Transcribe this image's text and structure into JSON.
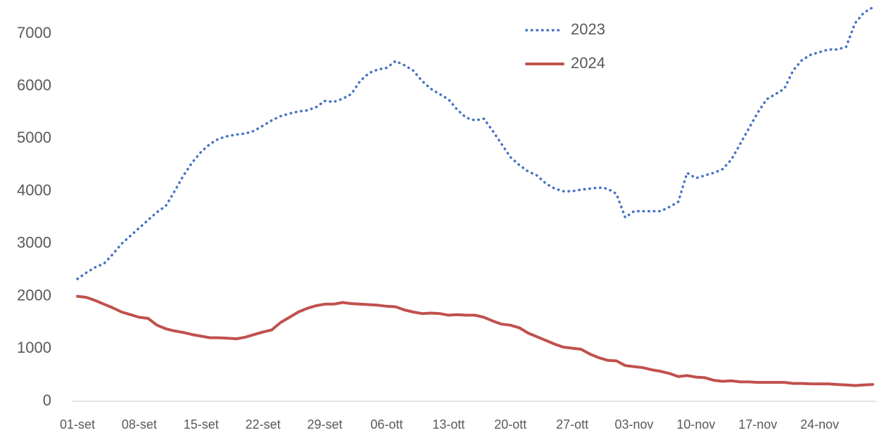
{
  "chart_data": {
    "type": "line",
    "categories": [
      "01-set",
      null,
      null,
      null,
      null,
      null,
      null,
      "08-set",
      null,
      null,
      null,
      null,
      null,
      null,
      "15-set",
      null,
      null,
      null,
      null,
      null,
      null,
      "22-set",
      null,
      null,
      null,
      null,
      null,
      null,
      "29-set",
      null,
      null,
      null,
      null,
      null,
      null,
      "06-ott",
      null,
      null,
      null,
      null,
      null,
      null,
      "13-ott",
      null,
      null,
      null,
      null,
      null,
      null,
      "20-ott",
      null,
      null,
      null,
      null,
      null,
      null,
      "27-ott",
      null,
      null,
      null,
      null,
      null,
      null,
      "03-nov",
      null,
      null,
      null,
      null,
      null,
      null,
      "10-nov",
      null,
      null,
      null,
      null,
      null,
      null,
      "17-nov",
      null,
      null,
      null,
      null,
      null,
      null,
      "24-nov",
      null,
      null,
      null,
      null,
      null,
      null
    ],
    "series": [
      {
        "name": "2023",
        "color": "#4472c4",
        "style": "dotted",
        "values": [
          2330,
          2450,
          2550,
          2620,
          2800,
          3000,
          3150,
          3300,
          3450,
          3600,
          3720,
          4000,
          4300,
          4550,
          4750,
          4900,
          5000,
          5050,
          5080,
          5100,
          5150,
          5250,
          5350,
          5430,
          5480,
          5520,
          5540,
          5600,
          5720,
          5700,
          5760,
          5850,
          6100,
          6250,
          6320,
          6350,
          6480,
          6400,
          6300,
          6100,
          5950,
          5850,
          5750,
          5550,
          5400,
          5350,
          5380,
          5150,
          4900,
          4650,
          4500,
          4380,
          4300,
          4150,
          4050,
          4000,
          4000,
          4030,
          4050,
          4070,
          4050,
          3950,
          3500,
          3620,
          3620,
          3620,
          3620,
          3700,
          3800,
          4350,
          4250,
          4300,
          4350,
          4420,
          4600,
          4900,
          5200,
          5500,
          5750,
          5850,
          5950,
          6300,
          6500,
          6600,
          6650,
          6700,
          6700,
          6750,
          7200,
          7400,
          7500
        ]
      },
      {
        "name": "2024",
        "color": "#c0504d",
        "style": "solid",
        "values": [
          2000,
          1980,
          1920,
          1850,
          1780,
          1700,
          1650,
          1600,
          1580,
          1450,
          1380,
          1340,
          1310,
          1270,
          1240,
          1210,
          1210,
          1200,
          1190,
          1220,
          1270,
          1320,
          1360,
          1500,
          1600,
          1700,
          1770,
          1820,
          1850,
          1850,
          1880,
          1860,
          1850,
          1840,
          1830,
          1810,
          1800,
          1740,
          1700,
          1670,
          1680,
          1670,
          1640,
          1650,
          1640,
          1640,
          1600,
          1530,
          1470,
          1450,
          1400,
          1300,
          1230,
          1160,
          1090,
          1030,
          1010,
          990,
          900,
          830,
          780,
          770,
          680,
          660,
          640,
          600,
          570,
          530,
          470,
          490,
          460,
          450,
          400,
          380,
          390,
          370,
          370,
          360,
          360,
          360,
          360,
          340,
          340,
          330,
          330,
          330,
          320,
          310,
          300,
          310,
          320
        ]
      }
    ],
    "ylim": [
      0,
      7000
    ],
    "yticks": [
      0,
      1000,
      2000,
      3000,
      4000,
      5000,
      6000,
      7000
    ],
    "grid": false,
    "legend": "top"
  }
}
